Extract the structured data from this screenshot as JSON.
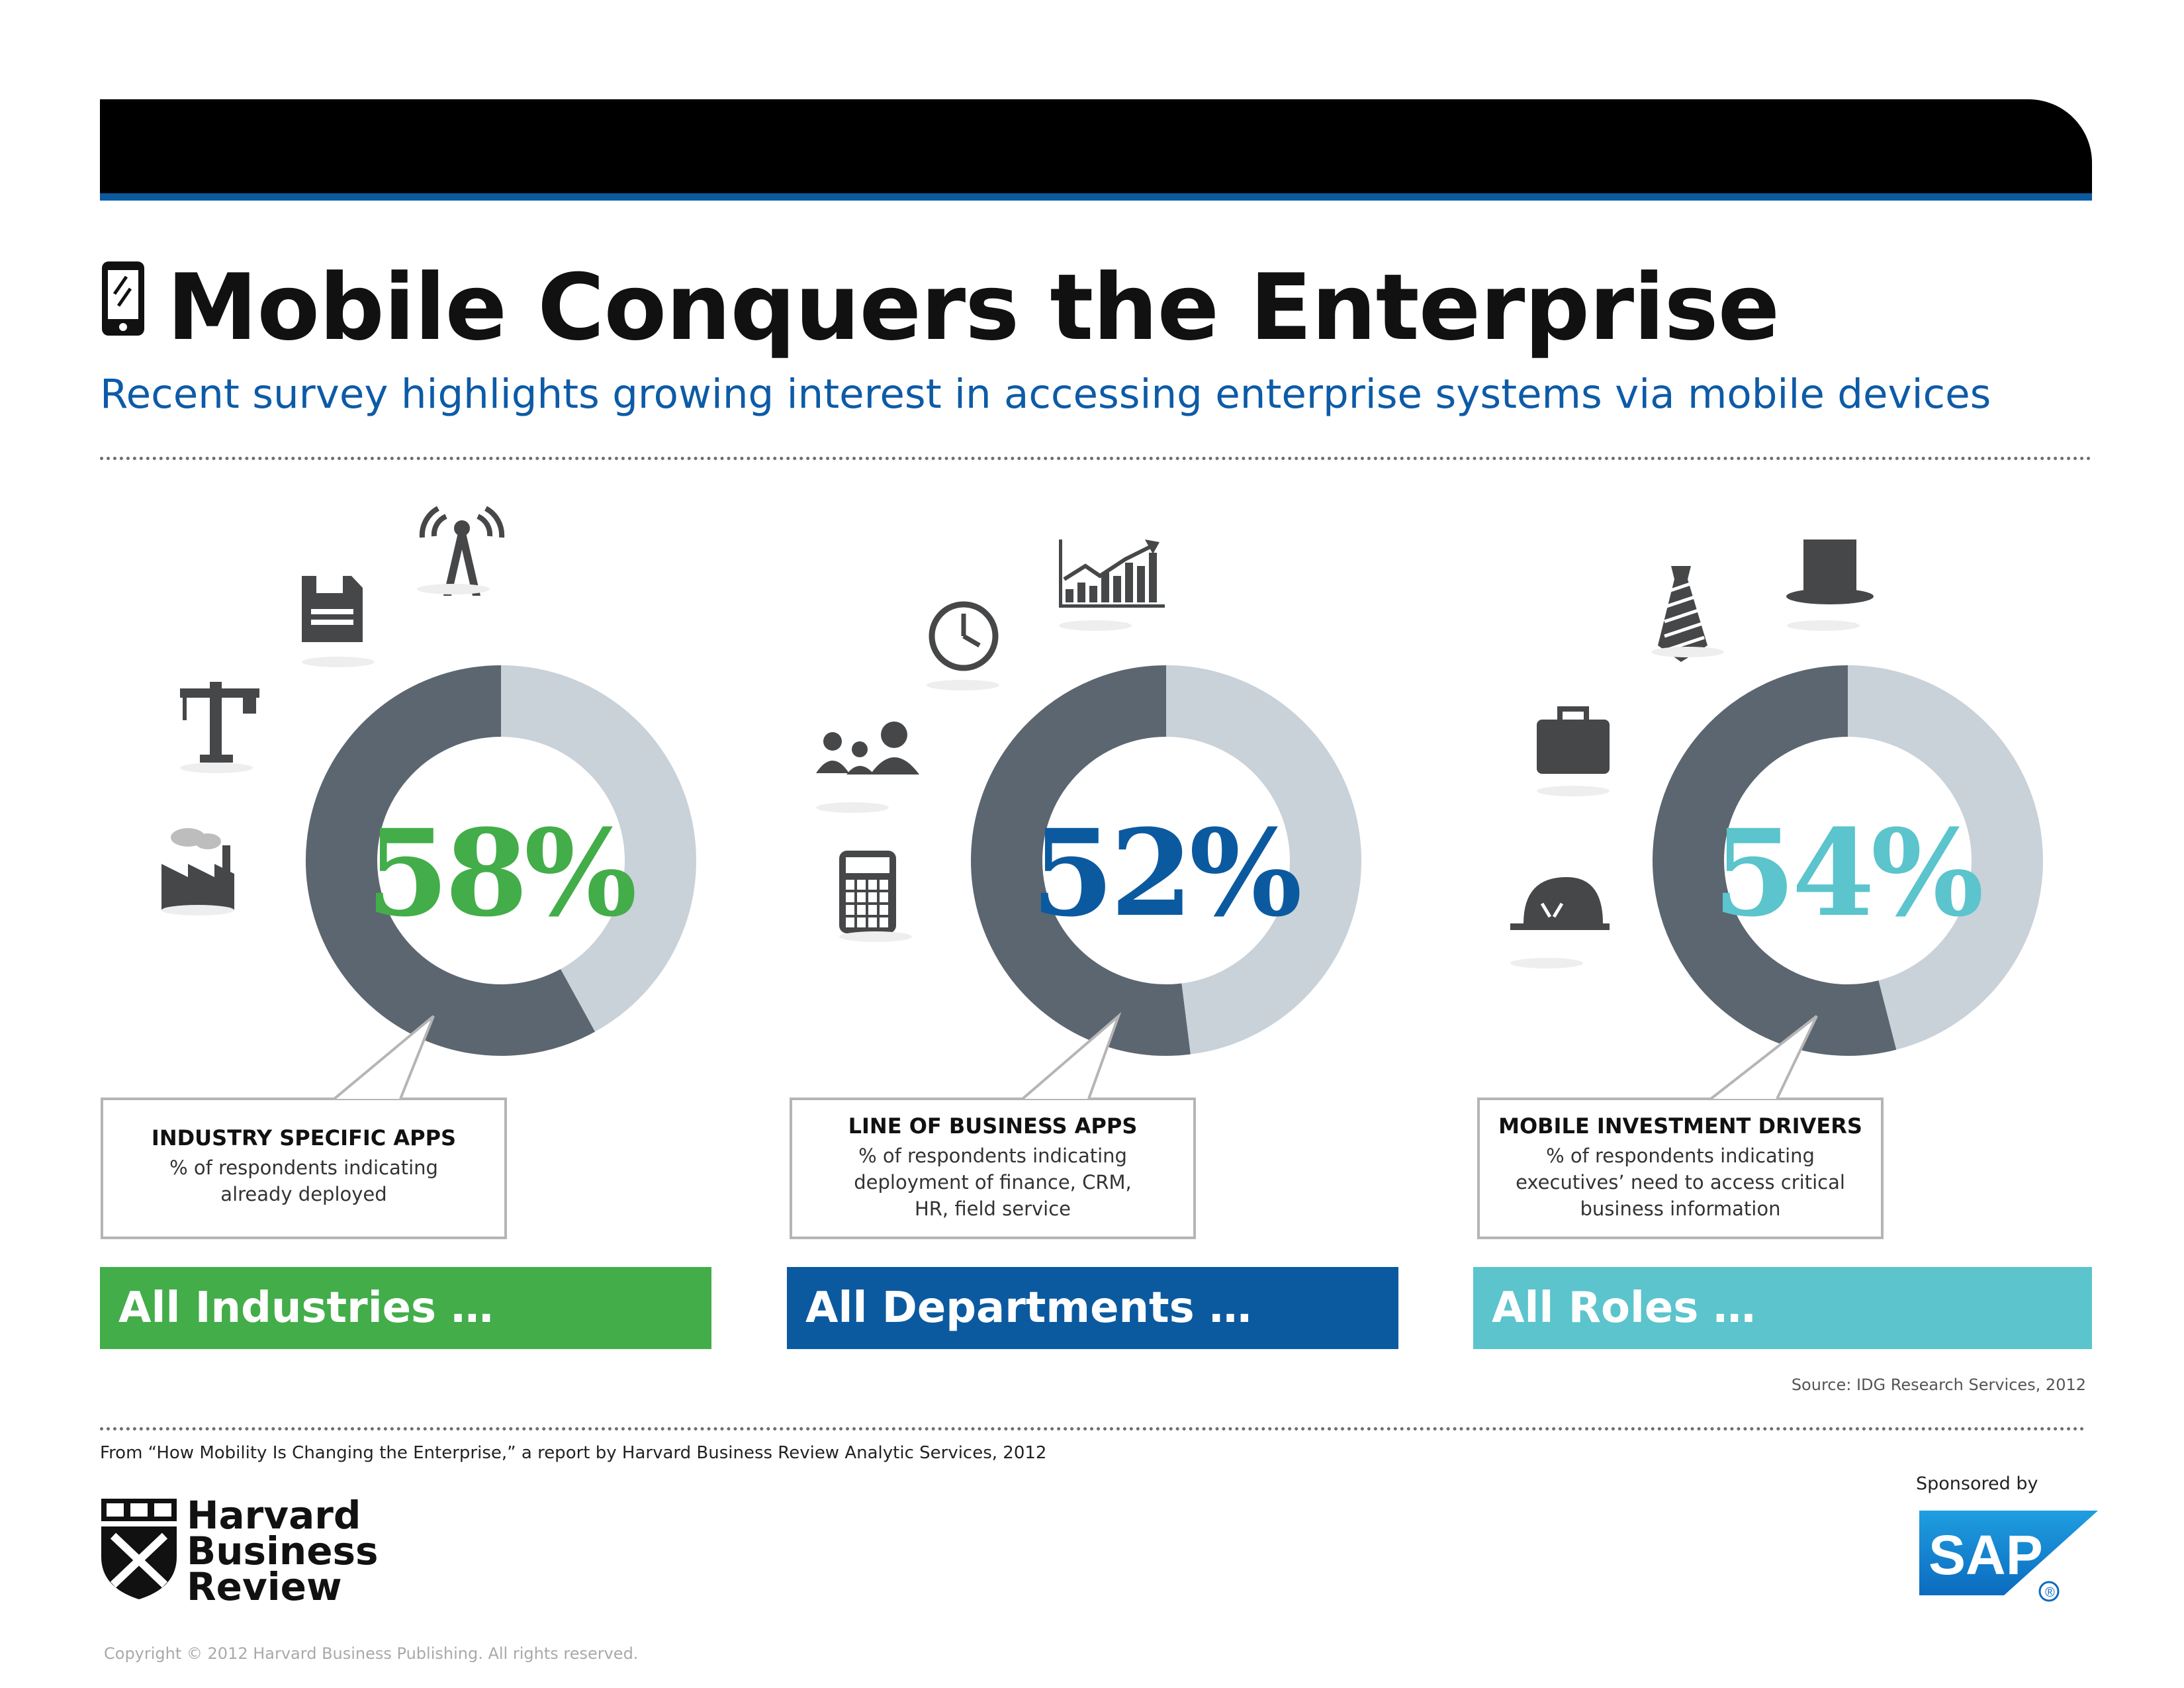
{
  "header": {
    "title": "Mobile Conquers the Enterprise",
    "subtitle": "Recent survey highlights growing interest in accessing enterprise systems via mobile devices"
  },
  "chart_data": [
    {
      "type": "pie",
      "value_label": "58%",
      "slices": [
        {
          "value": 58,
          "color": "#5b6670"
        },
        {
          "value": 42,
          "color": "#c9d1d9"
        }
      ],
      "accent_color": "#43ad49",
      "callout_title": "INDUSTRY SPECIFIC APPS",
      "callout_desc": "% of respondents indicating already deployed",
      "callout_lines": [
        "% of respondents indicating",
        "already deployed"
      ],
      "band_label": "All Industries …",
      "icons": [
        "factory-icon",
        "crane-icon",
        "floppy-disk-icon",
        "radio-tower-icon"
      ]
    },
    {
      "type": "pie",
      "value_label": "52%",
      "slices": [
        {
          "value": 52,
          "color": "#5b6670"
        },
        {
          "value": 48,
          "color": "#c9d1d9"
        }
      ],
      "accent_color": "#0b5aa0",
      "callout_title": "LINE OF BUSINESS APPS",
      "callout_desc": "% of respondents indicating deployment of finance, CRM, HR, field service",
      "callout_lines": [
        "% of respondents indicating",
        "deployment of finance, CRM,",
        "HR, field service"
      ],
      "band_label": "All Departments …",
      "icons": [
        "calculator-icon",
        "people-group-icon",
        "clock-icon",
        "growth-chart-icon"
      ]
    },
    {
      "type": "pie",
      "value_label": "54%",
      "slices": [
        {
          "value": 54,
          "color": "#5b6670"
        },
        {
          "value": 46,
          "color": "#c9d1d9"
        }
      ],
      "accent_color": "#5bc4cc",
      "callout_title": "MOBILE INVESTMENT DRIVERS",
      "callout_desc": "% of respondents indicating executives’ need to access critical business information",
      "callout_lines": [
        "% of respondents indicating",
        "executives’ need to access critical",
        "business information"
      ],
      "band_label": "All Roles …",
      "icons": [
        "hard-hat-icon",
        "briefcase-icon",
        "necktie-icon",
        "top-hat-icon"
      ]
    }
  ],
  "colors": {
    "ring_dark": "#5b6670",
    "ring_light": "#c9d1d9",
    "header_bar": "#000000",
    "stripe": "#0b5aa0",
    "subtitle": "#0d5ba7"
  },
  "footer": {
    "source": "Source: IDG Research Services, 2012",
    "from_line": "From “How Mobility Is Changing the Enterprise,” a report by Harvard Business Review Analytic Services, 2012",
    "sponsored_by": "Sponsored by",
    "sponsor_logo_text": "SAP",
    "publisher_lines": [
      "Harvard",
      "Business",
      "Review"
    ],
    "copyright": "Copyright © 2012 Harvard Business Publishing. All rights reserved."
  }
}
